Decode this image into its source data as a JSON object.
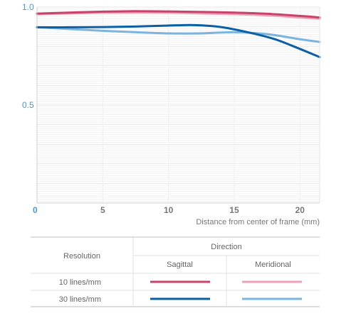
{
  "chart_data": {
    "type": "line",
    "xlabel": "Distance from center of frame (mm)",
    "ylabel": "",
    "xlim": [
      0,
      21.5
    ],
    "ylim": [
      0,
      1.0
    ],
    "x_ticks": [
      "0",
      "5",
      "10",
      "15",
      "20"
    ],
    "y_ticks": [
      "0.5",
      "1.0"
    ],
    "grid": "horizontal",
    "series": [
      {
        "resolution": "10 lines/mm",
        "direction": "Sagittal",
        "color": "#c8436c",
        "x": [
          0,
          2.5,
          5,
          7.5,
          10,
          12.5,
          15,
          17.5,
          20,
          21.5
        ],
        "y": [
          0.967,
          0.972,
          0.977,
          0.979,
          0.978,
          0.975,
          0.972,
          0.966,
          0.955,
          0.947
        ]
      },
      {
        "resolution": "10 lines/mm",
        "direction": "Meridional",
        "color": "#eda0b8",
        "x": [
          0,
          2.5,
          5,
          7.5,
          10,
          12.5,
          15,
          17.5,
          20,
          21.5
        ],
        "y": [
          0.964,
          0.968,
          0.971,
          0.972,
          0.971,
          0.968,
          0.964,
          0.958,
          0.947,
          0.94
        ]
      },
      {
        "resolution": "30 lines/mm",
        "direction": "Sagittal",
        "color": "#0a5fa5",
        "x": [
          0,
          2.5,
          5,
          7.5,
          10,
          12,
          14,
          16,
          18,
          19.5,
          21.5
        ],
        "y": [
          0.897,
          0.897,
          0.898,
          0.901,
          0.906,
          0.908,
          0.898,
          0.872,
          0.838,
          0.8,
          0.745
        ]
      },
      {
        "resolution": "30 lines/mm",
        "direction": "Meridional",
        "color": "#7ab4df",
        "x": [
          0,
          2.5,
          5,
          7.5,
          10,
          12.5,
          15,
          17.5,
          20,
          21.5
        ],
        "y": [
          0.897,
          0.888,
          0.879,
          0.872,
          0.866,
          0.866,
          0.872,
          0.862,
          0.836,
          0.822
        ]
      }
    ],
    "legend": {
      "row_header": "Resolution",
      "group_header": "Direction",
      "columns": [
        "Sagittal",
        "Meridional"
      ],
      "rows": [
        "10 lines/mm",
        "30 lines/mm"
      ]
    }
  }
}
